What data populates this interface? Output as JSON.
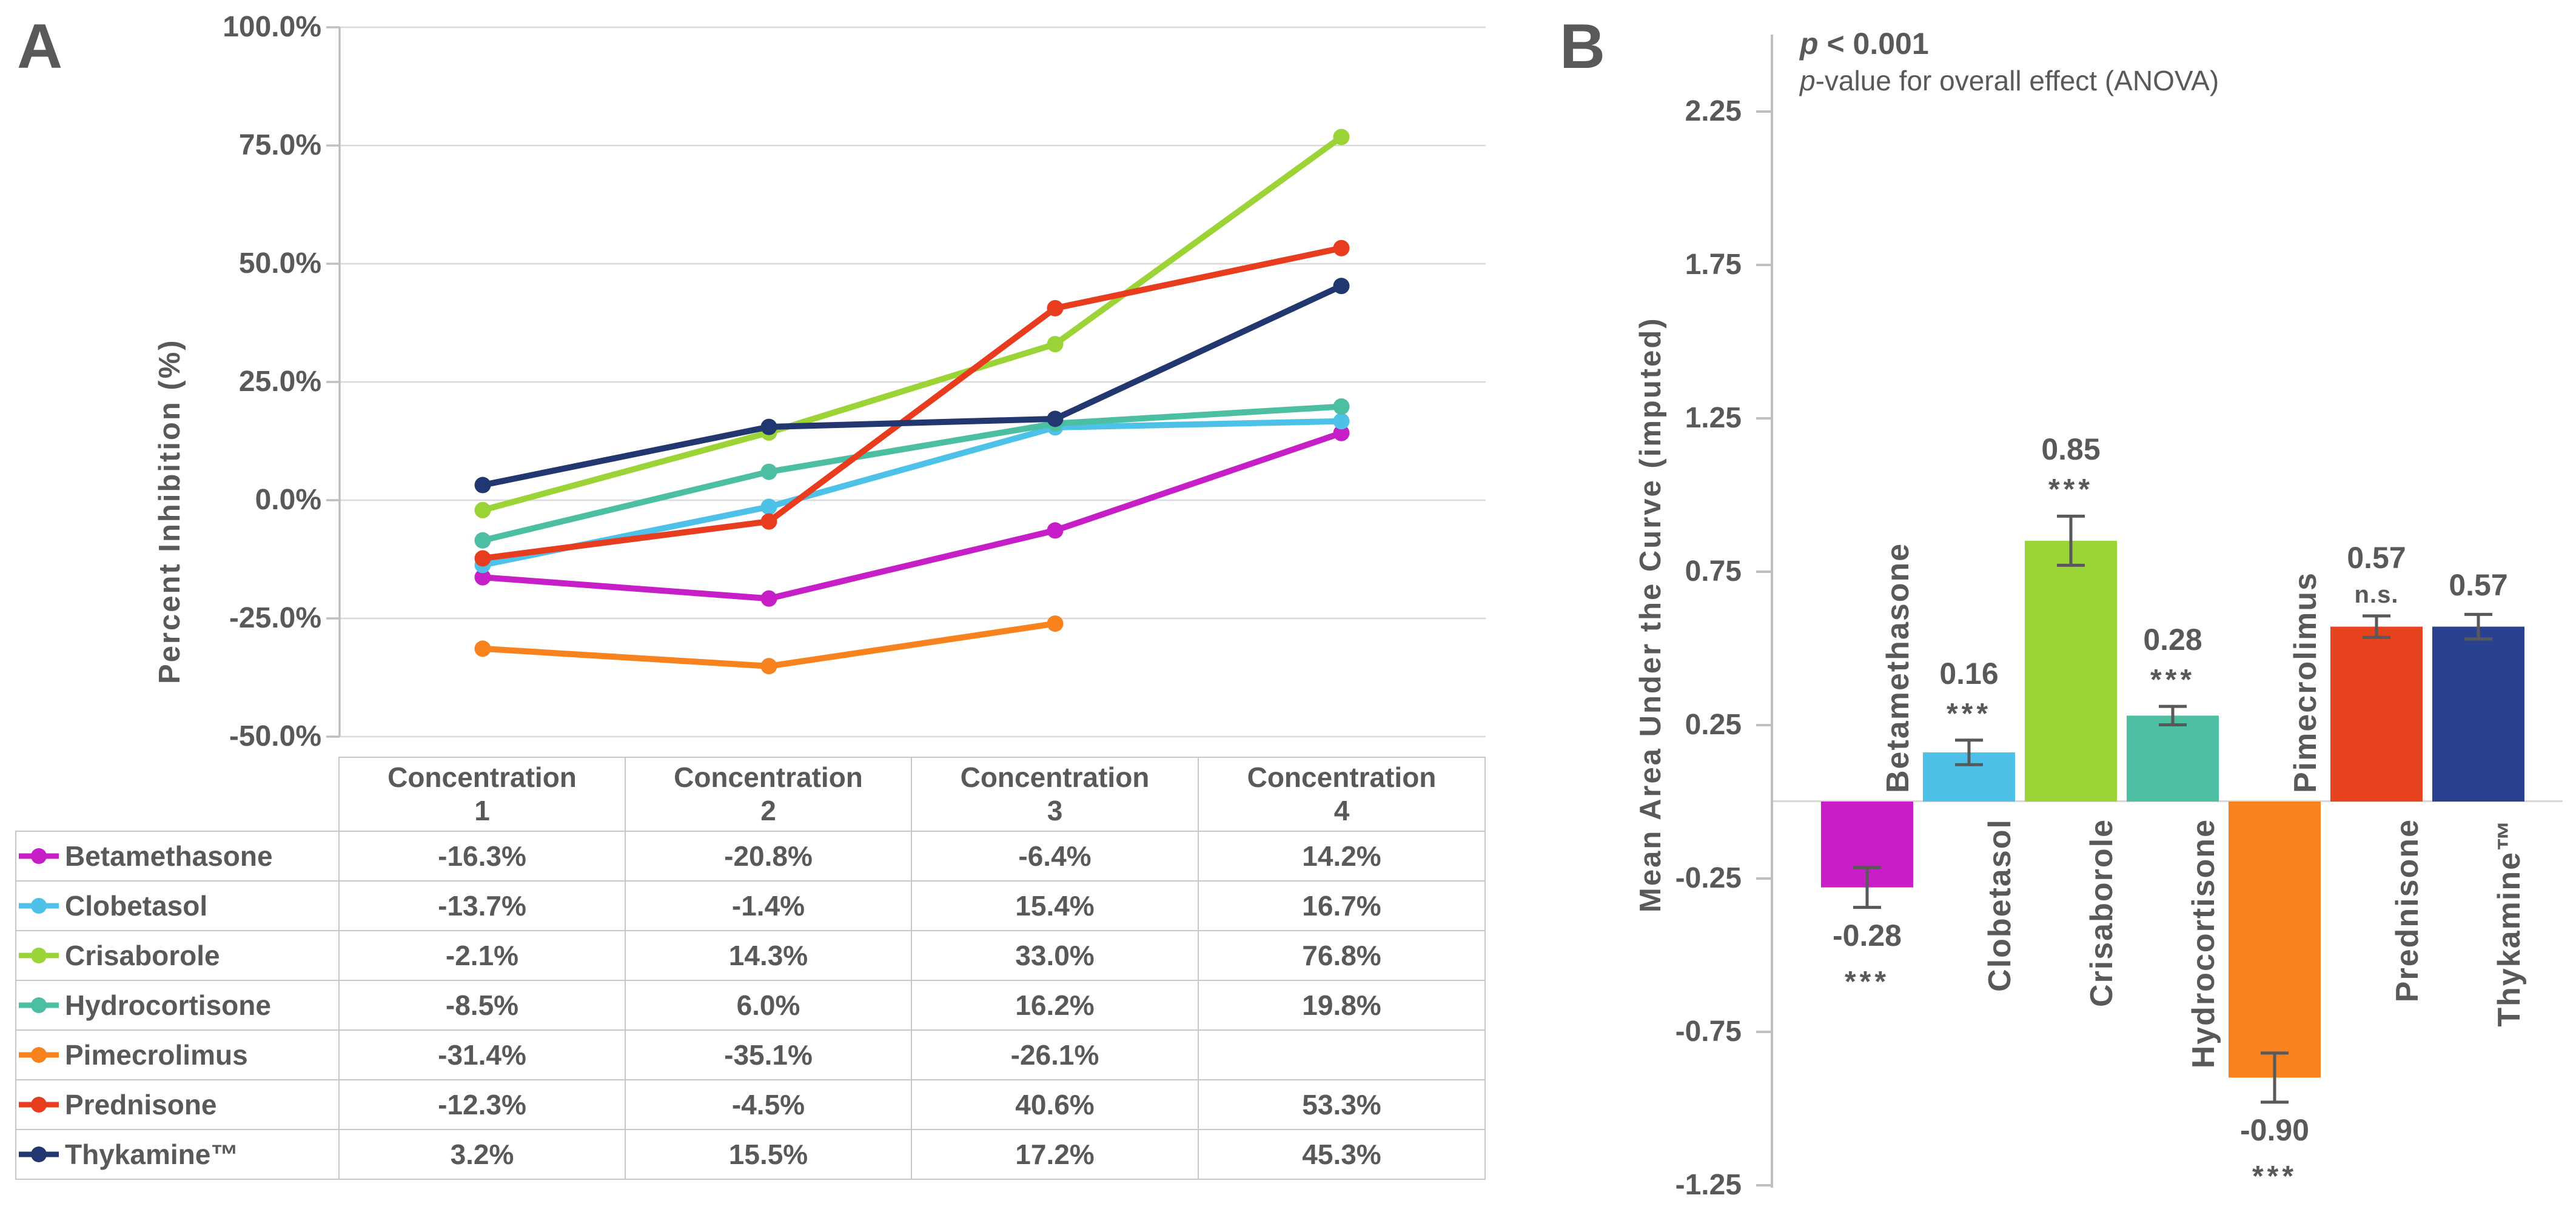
{
  "figure": {
    "panel_a": {
      "label": "A",
      "y_axis_title": "Percent Inhibition (%)",
      "y_tick_labels": [
        "100.0%",
        "75.0%",
        "50.0%",
        "25.0%",
        "0.0%",
        "-25.0%",
        "-50.0%"
      ],
      "column_headers": [
        [
          "Concentration",
          "1"
        ],
        [
          "Concentration",
          "2"
        ],
        [
          "Concentration",
          "3"
        ],
        [
          "Concentration",
          "4"
        ]
      ]
    },
    "panel_b": {
      "label": "B",
      "p_symbol": "p",
      "p_line1_rest": " < 0.001",
      "p_line2_rest": "-value for overall effect (ANOVA)",
      "y_axis_title": "Mean Area Under the Curve (imputed)",
      "y_tick_labels": [
        "2.25",
        "1.75",
        "1.25",
        "0.75",
        "0.25",
        "-0.25",
        "-0.75",
        "-1.25"
      ]
    },
    "colors": {
      "text": "#595959",
      "grid": "#D9D9D9",
      "axis": "#BFBFBF",
      "table_border": "#C8C8C8",
      "error_bar": "#595959"
    }
  },
  "chart_data": [
    {
      "type": "line",
      "panel": "A",
      "title": "",
      "xlabel": "",
      "ylabel": "Percent Inhibition (%)",
      "categories": [
        "Concentration 1",
        "Concentration 2",
        "Concentration 3",
        "Concentration 4"
      ],
      "ylim": [
        -50,
        100
      ],
      "ytick_values_pct": [
        100,
        75,
        50,
        25,
        0,
        -25,
        -50
      ],
      "grid": true,
      "legend_position": "table-left",
      "markers": "circle",
      "series": [
        {
          "name": "Betamethasone",
          "color": "#C71FC7",
          "values": [
            -16.3,
            -20.8,
            -6.4,
            14.2
          ],
          "display": [
            "-16.3%",
            "-20.8%",
            "-6.4%",
            "14.2%"
          ]
        },
        {
          "name": "Clobetasol",
          "color": "#4EC1E8",
          "values": [
            -13.7,
            -1.4,
            15.4,
            16.7
          ],
          "display": [
            "-13.7%",
            "-1.4%",
            "15.4%",
            "16.7%"
          ]
        },
        {
          "name": "Crisaborole",
          "color": "#9CD438",
          "values": [
            -2.1,
            14.3,
            33.0,
            76.8
          ],
          "display": [
            "-2.1%",
            "14.3%",
            "33.0%",
            "76.8%"
          ]
        },
        {
          "name": "Hydrocortisone",
          "color": "#4CBFA3",
          "values": [
            -8.5,
            6.0,
            16.2,
            19.8
          ],
          "display": [
            "-8.5%",
            "6.0%",
            "16.2%",
            "19.8%"
          ]
        },
        {
          "name": "Pimecrolimus",
          "color": "#F8821E",
          "values": [
            -31.4,
            -35.1,
            -26.1,
            null
          ],
          "display": [
            "-31.4%",
            "-35.1%",
            "-26.1%",
            ""
          ]
        },
        {
          "name": "Prednisone",
          "color": "#E83C1F",
          "values": [
            -12.3,
            -4.5,
            40.6,
            53.3
          ],
          "display": [
            "-12.3%",
            "-4.5%",
            "40.6%",
            "53.3%"
          ]
        },
        {
          "name": "Thykamine™",
          "color": "#22366F",
          "values": [
            3.2,
            15.5,
            17.2,
            45.3
          ],
          "display": [
            "3.2%",
            "15.5%",
            "17.2%",
            "45.3%"
          ]
        }
      ]
    },
    {
      "type": "bar",
      "panel": "B",
      "annotation_line1": "p < 0.001",
      "annotation_line2": "p-value for overall effect (ANOVA)",
      "ylabel": "Mean Area Under the Curve (imputed)",
      "ylim": [
        -1.25,
        2.5
      ],
      "yticks": [
        2.25,
        1.75,
        1.25,
        0.75,
        0.25,
        -0.25,
        -0.75,
        -1.25
      ],
      "grid": false,
      "legend_position": "none",
      "categories": [
        "Betamethasone",
        "Clobetasol",
        "Crisaborole",
        "Hydrocortisone",
        "Pimecrolimus",
        "Prednisone",
        "Thykamine™"
      ],
      "values": [
        -0.28,
        0.16,
        0.85,
        0.28,
        -0.9,
        0.57,
        0.57
      ],
      "value_labels": [
        "-0.28",
        "0.16",
        "0.85",
        "0.28",
        "-0.90",
        "0.57",
        "0.57"
      ],
      "significance": [
        "***",
        "***",
        "***",
        "***",
        "***",
        "n.s.",
        ""
      ],
      "errors": [
        0.065,
        0.04,
        0.08,
        0.03,
        0.08,
        0.035,
        0.04
      ],
      "colors": [
        "#C81EC8",
        "#4EC1E8",
        "#9CD438",
        "#4DC0A4",
        "#F8821E",
        "#E8431F",
        "#2A4190"
      ]
    }
  ]
}
